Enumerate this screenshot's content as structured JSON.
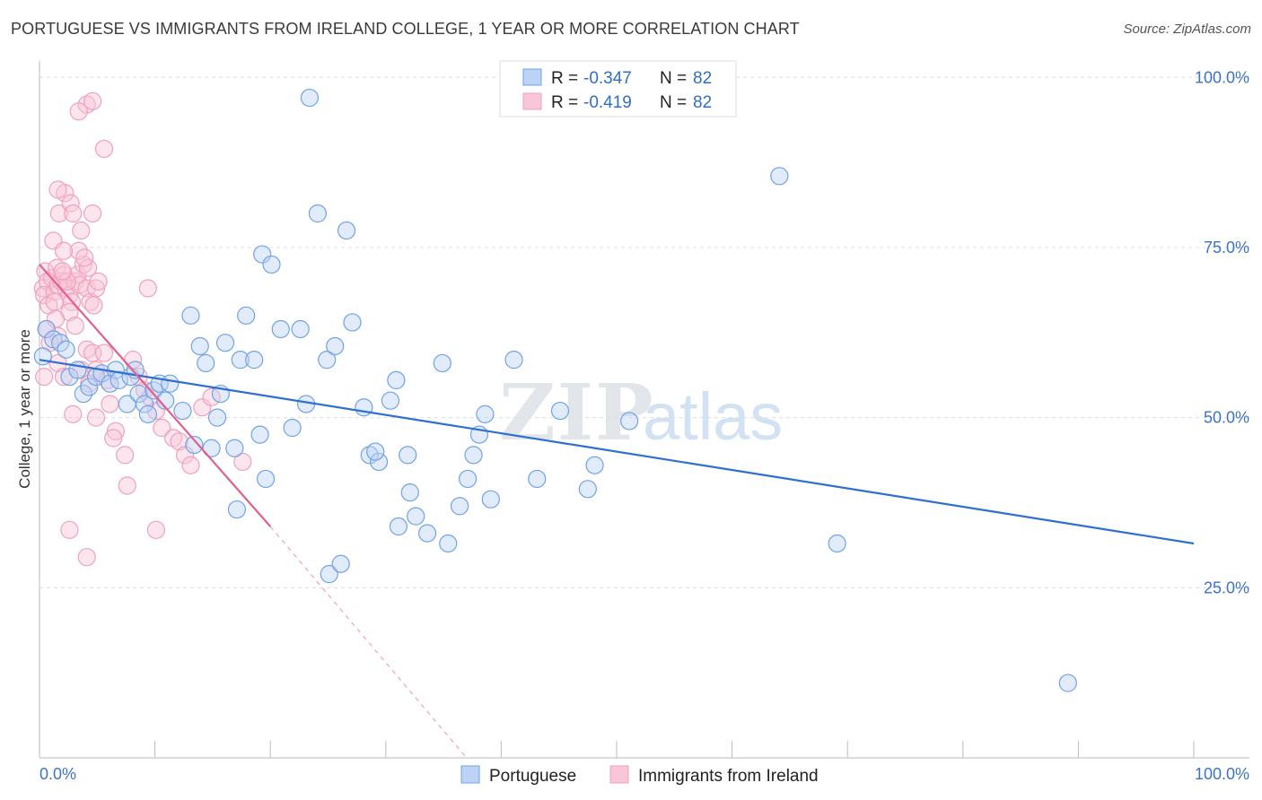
{
  "title": "PORTUGUESE VS IMMIGRANTS FROM IRELAND COLLEGE, 1 YEAR OR MORE CORRELATION CHART",
  "source": "Source: ZipAtlas.com",
  "watermark": {
    "zip": "ZIP",
    "atlas": "atlas"
  },
  "legend_top": {
    "rows": [
      {
        "r_label": "R = ",
        "r_value": "-0.347",
        "n_label": "N = ",
        "n_value": "82"
      },
      {
        "r_label": "R = ",
        "r_value": "-0.419",
        "n_label": "N = ",
        "n_value": "82"
      }
    ]
  },
  "chart_data": {
    "type": "scatter",
    "title": "PORTUGUESE VS IMMIGRANTS FROM IRELAND COLLEGE, 1 YEAR OR MORE CORRELATION CHART",
    "xlabel": "",
    "ylabel": "College, 1 year or more",
    "xlim": [
      0,
      100
    ],
    "ylim": [
      0,
      102
    ],
    "x_tick_labels": [
      "0.0%",
      "100.0%"
    ],
    "y_ticks": [
      25,
      50,
      75,
      100
    ],
    "y_tick_labels": [
      "25.0%",
      "50.0%",
      "75.0%",
      "100.0%"
    ],
    "grid": true,
    "colors": {
      "portuguese": "#6fa3e6",
      "ireland": "#f0a0bd",
      "portuguese_line": "#2f6fcf",
      "ireland_line": "#e0608e",
      "tick": "#3a74c8"
    },
    "series": [
      {
        "name": "Portuguese",
        "r": -0.347,
        "n": 82,
        "trend": {
          "x0": 0,
          "y0": 58.5,
          "x1": 100,
          "y1": 31.5
        },
        "points": [
          [
            0.3,
            59
          ],
          [
            0.6,
            63
          ],
          [
            1.2,
            61.5
          ],
          [
            1.8,
            61
          ],
          [
            2.3,
            60
          ],
          [
            2.6,
            56
          ],
          [
            3.3,
            57
          ],
          [
            3.8,
            53.5
          ],
          [
            4.3,
            54.5
          ],
          [
            4.9,
            56
          ],
          [
            5.4,
            56.5
          ],
          [
            6.1,
            55
          ],
          [
            6.6,
            57
          ],
          [
            6.9,
            55.5
          ],
          [
            7.6,
            52
          ],
          [
            7.9,
            56
          ],
          [
            8.3,
            57
          ],
          [
            8.6,
            53.5
          ],
          [
            9.1,
            52
          ],
          [
            9.4,
            50.5
          ],
          [
            9.9,
            54
          ],
          [
            10.4,
            55
          ],
          [
            10.9,
            52.5
          ],
          [
            11.3,
            55
          ],
          [
            12.4,
            51
          ],
          [
            13.1,
            65
          ],
          [
            13.4,
            46
          ],
          [
            13.9,
            60.5
          ],
          [
            14.4,
            58
          ],
          [
            14.9,
            45.5
          ],
          [
            15.4,
            50
          ],
          [
            15.7,
            53.5
          ],
          [
            16.1,
            61
          ],
          [
            16.9,
            45.5
          ],
          [
            17.4,
            58.5
          ],
          [
            17.9,
            65
          ],
          [
            18.6,
            58.5
          ],
          [
            19.1,
            47.5
          ],
          [
            19.6,
            41
          ],
          [
            19.3,
            74
          ],
          [
            20.1,
            72.5
          ],
          [
            20.9,
            63
          ],
          [
            21.9,
            48.5
          ],
          [
            22.6,
            63
          ],
          [
            23.1,
            52
          ],
          [
            23.4,
            97
          ],
          [
            24.1,
            80
          ],
          [
            24.9,
            58.5
          ],
          [
            25.6,
            60.5
          ],
          [
            26.6,
            77.5
          ],
          [
            27.1,
            64
          ],
          [
            28.1,
            51.5
          ],
          [
            28.6,
            44.5
          ],
          [
            29.4,
            43.5
          ],
          [
            29.1,
            45
          ],
          [
            30.4,
            52.5
          ],
          [
            30.9,
            55.5
          ],
          [
            31.9,
            44.5
          ],
          [
            32.1,
            39
          ],
          [
            32.6,
            35.5
          ],
          [
            31.1,
            34
          ],
          [
            33.6,
            33
          ],
          [
            34.9,
            58
          ],
          [
            35.4,
            31.5
          ],
          [
            36.4,
            37
          ],
          [
            37.1,
            41
          ],
          [
            37.6,
            44.5
          ],
          [
            38.6,
            50.5
          ],
          [
            38.1,
            47.5
          ],
          [
            39.1,
            38
          ],
          [
            41.1,
            58.5
          ],
          [
            43.1,
            41
          ],
          [
            45.1,
            51
          ],
          [
            47.5,
            39.5
          ],
          [
            48.1,
            43
          ],
          [
            51.1,
            49.5
          ],
          [
            25.1,
            27
          ],
          [
            26.1,
            28.5
          ],
          [
            17.1,
            36.5
          ],
          [
            64.1,
            85.5
          ],
          [
            69.1,
            31.5
          ],
          [
            89.1,
            11
          ]
        ]
      },
      {
        "name": "Immigrants from Ireland",
        "r": -0.419,
        "n": 82,
        "trend": {
          "x0": 0,
          "y0": 72.5,
          "x1": 20,
          "y1": 34
        },
        "trend_dashed": {
          "x0": 20,
          "y0": 34,
          "x1": 37,
          "y1": 0
        },
        "points": [
          [
            0.3,
            69
          ],
          [
            0.5,
            71.5
          ],
          [
            0.7,
            70
          ],
          [
            0.4,
            68
          ],
          [
            0.8,
            66.5
          ],
          [
            1.1,
            70.5
          ],
          [
            1.3,
            68.5
          ],
          [
            1.5,
            72
          ],
          [
            1.6,
            69.5
          ],
          [
            1.9,
            70
          ],
          [
            2.1,
            71
          ],
          [
            2.3,
            69
          ],
          [
            2.6,
            68
          ],
          [
            2.8,
            67
          ],
          [
            3.1,
            70
          ],
          [
            3.3,
            71
          ],
          [
            3.5,
            69.5
          ],
          [
            3.8,
            72.5
          ],
          [
            1.2,
            76
          ],
          [
            1.7,
            80
          ],
          [
            2.2,
            83
          ],
          [
            1.6,
            83.5
          ],
          [
            2.7,
            81.5
          ],
          [
            2.9,
            80
          ],
          [
            3.4,
            74.5
          ],
          [
            3.6,
            77.5
          ],
          [
            4.6,
            80
          ],
          [
            4.2,
            72
          ],
          [
            3.9,
            73.5
          ],
          [
            4.1,
            69
          ],
          [
            4.4,
            67
          ],
          [
            4.7,
            66.5
          ],
          [
            4.9,
            69
          ],
          [
            5.1,
            70
          ],
          [
            2.1,
            74.5
          ],
          [
            2.4,
            70
          ],
          [
            2.6,
            65.5
          ],
          [
            0.6,
            63
          ],
          [
            1.4,
            64.5
          ],
          [
            1.6,
            62
          ],
          [
            3.1,
            63.5
          ],
          [
            3.6,
            57
          ],
          [
            4.1,
            60
          ],
          [
            4.6,
            59.5
          ],
          [
            4.3,
            55
          ],
          [
            4.9,
            57
          ],
          [
            5.6,
            59.5
          ],
          [
            5.9,
            55.5
          ],
          [
            6.1,
            52
          ],
          [
            6.6,
            48
          ],
          [
            6.4,
            47
          ],
          [
            7.4,
            44.5
          ],
          [
            7.6,
            40
          ],
          [
            8.1,
            58.5
          ],
          [
            8.6,
            56
          ],
          [
            9.1,
            54
          ],
          [
            9.6,
            53
          ],
          [
            10.1,
            51
          ],
          [
            10.6,
            48.5
          ],
          [
            11.6,
            47
          ],
          [
            12.1,
            46.5
          ],
          [
            12.6,
            44.5
          ],
          [
            13.1,
            43
          ],
          [
            14.1,
            51.5
          ],
          [
            14.9,
            53
          ],
          [
            17.6,
            43.5
          ],
          [
            9.4,
            69
          ],
          [
            4.1,
            96
          ],
          [
            3.4,
            95
          ],
          [
            4.6,
            96.5
          ],
          [
            5.6,
            89.5
          ],
          [
            1.6,
            58
          ],
          [
            2.9,
            50.5
          ],
          [
            4.9,
            50
          ],
          [
            2.1,
            56
          ],
          [
            2.6,
            33.5
          ],
          [
            4.1,
            29.5
          ],
          [
            10.1,
            33.5
          ],
          [
            0.4,
            56
          ],
          [
            0.9,
            61
          ],
          [
            1.3,
            67
          ],
          [
            2.0,
            71.5
          ]
        ]
      }
    ],
    "legend_bottom": [
      "Portuguese",
      "Immigrants from Ireland"
    ]
  }
}
